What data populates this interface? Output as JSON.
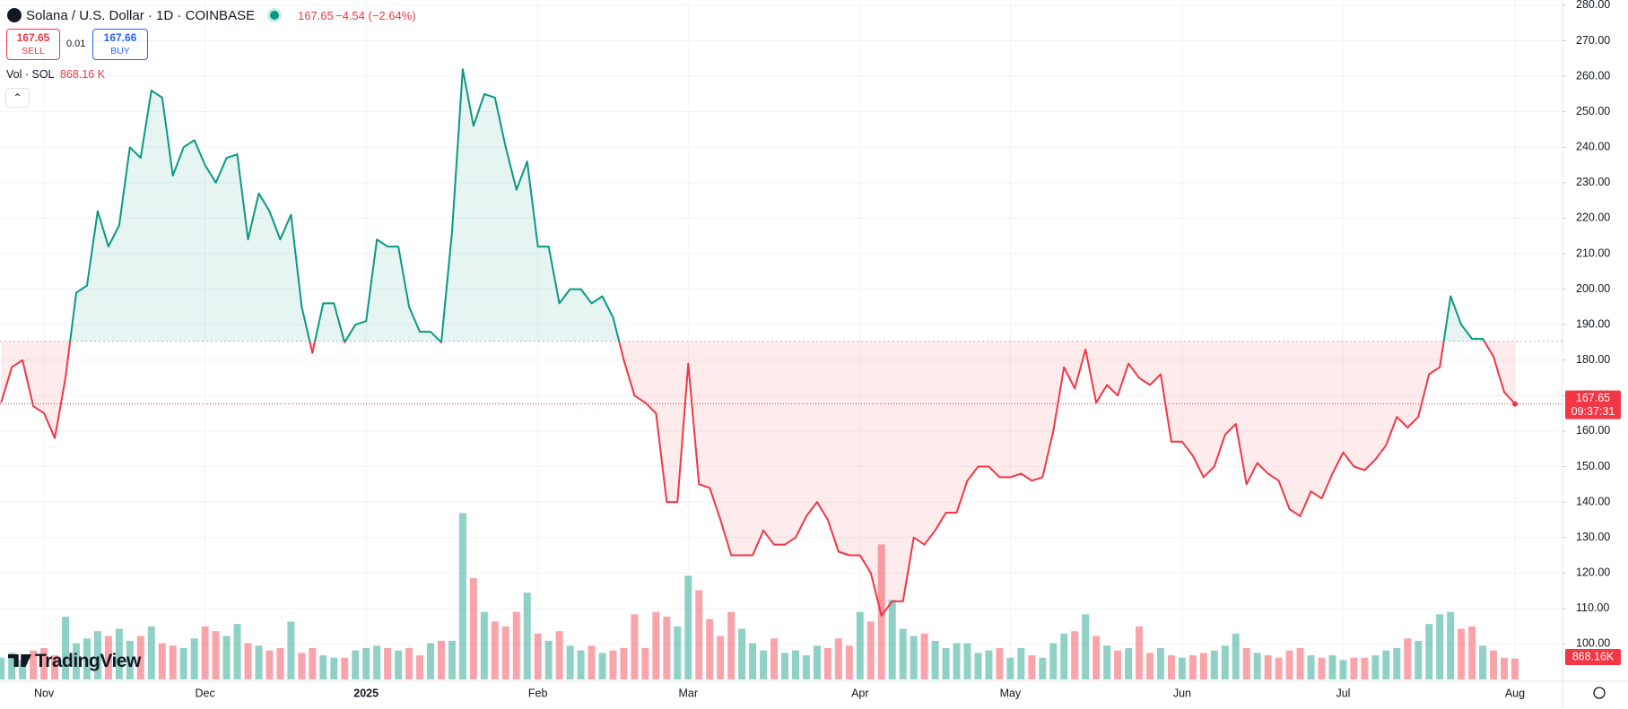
{
  "header": {
    "symbol": "Solana / U.S. Dollar · 1D · COINBASE",
    "price": "167.65",
    "change": "−4.54 (−2.64%)",
    "sell_price": "167.65",
    "sell": "SELL",
    "spread": "0.01",
    "buy_price": "167.66",
    "buy": "BUY",
    "volume_title": "Vol · SOL",
    "volume": "868.16 K",
    "logo": "TradingView"
  },
  "chart_data": {
    "type": "baseline",
    "categories": [
      null,
      null,
      null,
      null,
      "Nov",
      null,
      null,
      null,
      null,
      null,
      null,
      null,
      null,
      null,
      null,
      null,
      null,
      null,
      null,
      "Dec",
      null,
      null,
      null,
      null,
      null,
      null,
      null,
      null,
      null,
      null,
      null,
      null,
      null,
      null,
      "2025",
      null,
      null,
      null,
      null,
      null,
      null,
      null,
      null,
      null,
      null,
      null,
      null,
      null,
      null,
      null,
      "Feb",
      null,
      null,
      null,
      null,
      null,
      null,
      null,
      null,
      null,
      null,
      null,
      null,
      null,
      "Mar",
      null,
      null,
      null,
      null,
      null,
      null,
      null,
      null,
      null,
      null,
      null,
      null,
      null,
      null,
      null,
      "Apr",
      null,
      null,
      null,
      null,
      null,
      null,
      null,
      null,
      null,
      null,
      null,
      null,
      null,
      "May",
      null,
      null,
      null,
      null,
      null,
      null,
      null,
      null,
      null,
      null,
      null,
      null,
      null,
      null,
      null,
      "Jun",
      null,
      null,
      null,
      null,
      null,
      null,
      null,
      null,
      null,
      null,
      null,
      null,
      null,
      null,
      "Jul",
      null,
      null,
      null,
      null,
      null,
      null,
      null,
      null,
      null,
      null,
      null,
      null,
      null,
      null,
      null,
      "Aug"
    ],
    "values": [
      168,
      178,
      180,
      167,
      165,
      158,
      175,
      199,
      201,
      222,
      212,
      218,
      240,
      237,
      256,
      254,
      232,
      240,
      242,
      235,
      230,
      237,
      238,
      214,
      227,
      222,
      214,
      221,
      195,
      182,
      196,
      196,
      185,
      190,
      191,
      214,
      212,
      212,
      195,
      188,
      188,
      185,
      216,
      262,
      246,
      255,
      254,
      240,
      228,
      236,
      212,
      212,
      196,
      200,
      200,
      196,
      198,
      192,
      180,
      170,
      168,
      165,
      140,
      140,
      179,
      145,
      144,
      135,
      125,
      125,
      125,
      132,
      128,
      128,
      130,
      136,
      140,
      135,
      126,
      125,
      125,
      120,
      108,
      112,
      112,
      130,
      128,
      132,
      137,
      137,
      146,
      150,
      150,
      147,
      147,
      148,
      146,
      147,
      160,
      178,
      172,
      183,
      168,
      173,
      170,
      179,
      175,
      173,
      176,
      157,
      157,
      153,
      147,
      150,
      159,
      162,
      145,
      151,
      148,
      146,
      138,
      136,
      143,
      141,
      148,
      154,
      150,
      149,
      152,
      156,
      164,
      161,
      164,
      176,
      178,
      198,
      190,
      186,
      186,
      181,
      171,
      167.65
    ],
    "volumes": [
      900,
      1100,
      800,
      1200,
      1300,
      1000,
      2600,
      1500,
      1700,
      2000,
      1800,
      2100,
      1600,
      1800,
      2200,
      1500,
      1400,
      1300,
      1700,
      2200,
      2000,
      1800,
      2300,
      1500,
      1400,
      1200,
      1300,
      2400,
      1100,
      1300,
      1000,
      900,
      900,
      1200,
      1300,
      1400,
      1300,
      1200,
      1300,
      1000,
      1500,
      1600,
      1600,
      6900,
      4200,
      2800,
      2400,
      2200,
      2800,
      3600,
      1900,
      1600,
      2000,
      1400,
      1200,
      1400,
      1100,
      1200,
      1300,
      2700,
      1300,
      2800,
      2600,
      2200,
      4300,
      3700,
      2500,
      1800,
      2800,
      2100,
      1500,
      1200,
      1700,
      1100,
      1200,
      1000,
      1400,
      1300,
      1700,
      1400,
      2800,
      2400,
      5600,
      3300,
      2100,
      1800,
      1900,
      1600,
      1300,
      1500,
      1500,
      1100,
      1200,
      1300,
      900,
      1300,
      1000,
      900,
      1500,
      1900,
      2000,
      2700,
      1800,
      1400,
      1200,
      1300,
      2200,
      1100,
      1300,
      1000,
      900,
      1000,
      1100,
      1200,
      1400,
      1900,
      1300,
      1100,
      1000,
      900,
      1200,
      1300,
      1000,
      900,
      1000,
      800,
      900,
      900,
      1000,
      1200,
      1300,
      1700,
      1600,
      2300,
      2700,
      2800,
      2100,
      2200,
      1400,
      1200,
      900,
      868.16
    ],
    "baseline": 185.3,
    "up_color": "#089981",
    "down_color": "#f23645",
    "ylim": [
      90,
      281.5
    ],
    "yticks": [
      {
        "value": 100,
        "label": "100.00"
      },
      {
        "value": 110,
        "label": "110.00"
      },
      {
        "value": 120,
        "label": "120.00"
      },
      {
        "value": 130,
        "label": "130.00"
      },
      {
        "value": 140,
        "label": "140.00"
      },
      {
        "value": 150,
        "label": "150.00"
      },
      {
        "value": 160,
        "label": "160.00"
      },
      {
        "value": 170,
        "label": "170.00"
      },
      {
        "value": 180,
        "label": "180.00"
      },
      {
        "value": 190,
        "label": "190.00"
      },
      {
        "value": 200,
        "label": "200.00"
      },
      {
        "value": 210,
        "label": "210.00"
      },
      {
        "value": 220,
        "label": "220.00"
      },
      {
        "value": 230,
        "label": "230.00"
      },
      {
        "value": 240,
        "label": "240.00"
      },
      {
        "value": 250,
        "label": "250.00"
      },
      {
        "value": 260,
        "label": "260.00"
      },
      {
        "value": 270,
        "label": "270.00"
      },
      {
        "value": 280,
        "label": "280.00"
      }
    ],
    "grid": true,
    "countdown": "09:37:31",
    "volume_label": "868.16K"
  }
}
